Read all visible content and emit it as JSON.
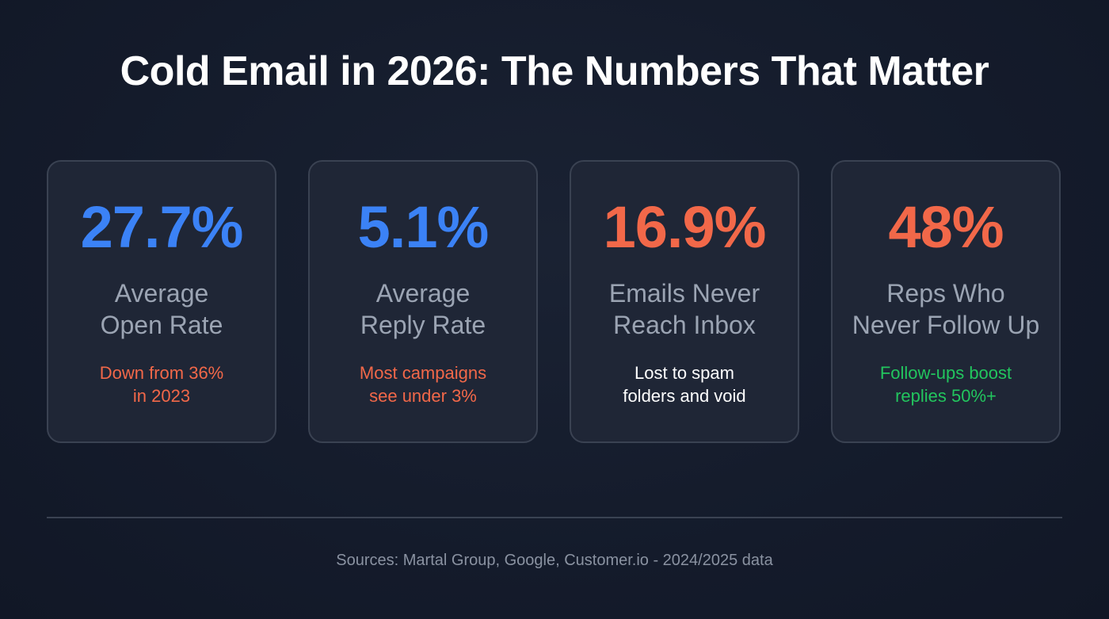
{
  "title": "Cold Email in 2026: The Numbers That Matter",
  "colors": {
    "blue": "#3b82f6",
    "red": "#f26849",
    "green": "#22c55e",
    "white": "#ffffff",
    "label": "#9ba4b3"
  },
  "cards": [
    {
      "value": "27.7%",
      "label_line1": "Average",
      "label_line2": "Open Rate",
      "sub_line1": "Down from 36%",
      "sub_line2": "in 2023",
      "value_color": "#3b82f6",
      "sub_color": "#f26849"
    },
    {
      "value": "5.1%",
      "label_line1": "Average",
      "label_line2": "Reply Rate",
      "sub_line1": "Most campaigns",
      "sub_line2": "see under 3%",
      "value_color": "#3b82f6",
      "sub_color": "#f26849"
    },
    {
      "value": "16.9%",
      "label_line1": "Emails Never",
      "label_line2": "Reach Inbox",
      "sub_line1": "Lost to spam",
      "sub_line2": "folders and void",
      "value_color": "#f26849",
      "sub_color": "#ffffff"
    },
    {
      "value": "48%",
      "label_line1": "Reps Who",
      "label_line2": "Never Follow Up",
      "sub_line1": "Follow-ups boost",
      "sub_line2": "replies 50%+",
      "value_color": "#f26849",
      "sub_color": "#22c55e"
    }
  ],
  "source": "Sources: Martal Group, Google, Customer.io - 2024/2025 data"
}
